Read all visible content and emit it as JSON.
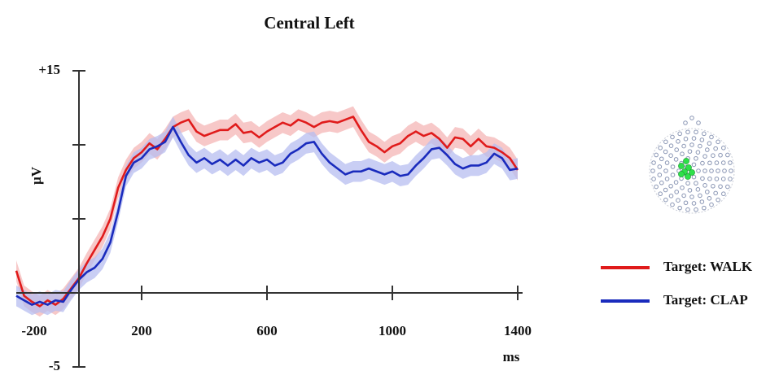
{
  "chart_data": {
    "type": "line",
    "title": "Central Left",
    "y_label": "µV",
    "x_label": "ms",
    "xlim": [
      -200,
      1400
    ],
    "ylim": [
      -5,
      15
    ],
    "xticks": [
      -200,
      200,
      600,
      1000,
      1400
    ],
    "yticks": [
      -5,
      {
        "value": 15,
        "label": "+15"
      }
    ],
    "yminorticks": [
      0,
      5,
      10
    ],
    "x": [
      -200,
      -175,
      -150,
      -125,
      -100,
      -75,
      -50,
      -25,
      0,
      25,
      50,
      75,
      100,
      125,
      150,
      175,
      200,
      225,
      250,
      275,
      300,
      325,
      350,
      375,
      400,
      425,
      450,
      475,
      500,
      525,
      550,
      575,
      600,
      625,
      650,
      675,
      700,
      725,
      750,
      775,
      800,
      825,
      850,
      875,
      900,
      925,
      950,
      975,
      1000,
      1025,
      1050,
      1075,
      1100,
      1125,
      1150,
      1175,
      1200,
      1225,
      1250,
      1275,
      1300,
      1325,
      1350,
      1375,
      1400
    ],
    "series": [
      {
        "name": "Target: WALK",
        "color": "#e01b1b",
        "band_color": "#f4b6b6",
        "error": 0.7,
        "values": [
          1.5,
          -0.2,
          -0.6,
          -0.9,
          -0.5,
          -0.8,
          -0.4,
          0.3,
          1.0,
          2.0,
          2.9,
          3.8,
          5.0,
          7.1,
          8.3,
          9.1,
          9.5,
          10.1,
          9.7,
          10.4,
          11.2,
          11.5,
          11.7,
          10.9,
          10.6,
          10.8,
          11.0,
          11.0,
          11.4,
          10.8,
          10.9,
          10.5,
          10.9,
          11.2,
          11.5,
          11.3,
          11.7,
          11.5,
          11.2,
          11.5,
          11.6,
          11.5,
          11.7,
          11.9,
          11.0,
          10.2,
          9.9,
          9.5,
          9.9,
          10.1,
          10.6,
          10.9,
          10.6,
          10.8,
          10.4,
          9.8,
          10.5,
          10.4,
          9.9,
          10.4,
          9.9,
          9.8,
          9.5,
          9.1,
          8.3
        ]
      },
      {
        "name": "Target: CLAP",
        "color": "#1a2bbd",
        "band_color": "#b7bdf0",
        "error": 0.7,
        "values": [
          -0.2,
          -0.5,
          -0.8,
          -0.6,
          -0.8,
          -0.5,
          -0.6,
          0.2,
          0.9,
          1.4,
          1.7,
          2.3,
          3.4,
          5.5,
          7.9,
          8.8,
          9.1,
          9.7,
          9.9,
          10.2,
          11.2,
          10.2,
          9.3,
          8.8,
          9.1,
          8.7,
          9.0,
          8.6,
          9.0,
          8.6,
          9.1,
          8.8,
          9.0,
          8.6,
          8.8,
          9.4,
          9.7,
          10.1,
          10.2,
          9.4,
          8.8,
          8.4,
          8.0,
          8.2,
          8.2,
          8.4,
          8.2,
          8.0,
          8.2,
          7.9,
          8.0,
          8.6,
          9.1,
          9.7,
          9.8,
          9.3,
          8.7,
          8.4,
          8.6,
          8.6,
          8.8,
          9.4,
          9.1,
          8.3,
          8.4
        ]
      }
    ]
  }
}
